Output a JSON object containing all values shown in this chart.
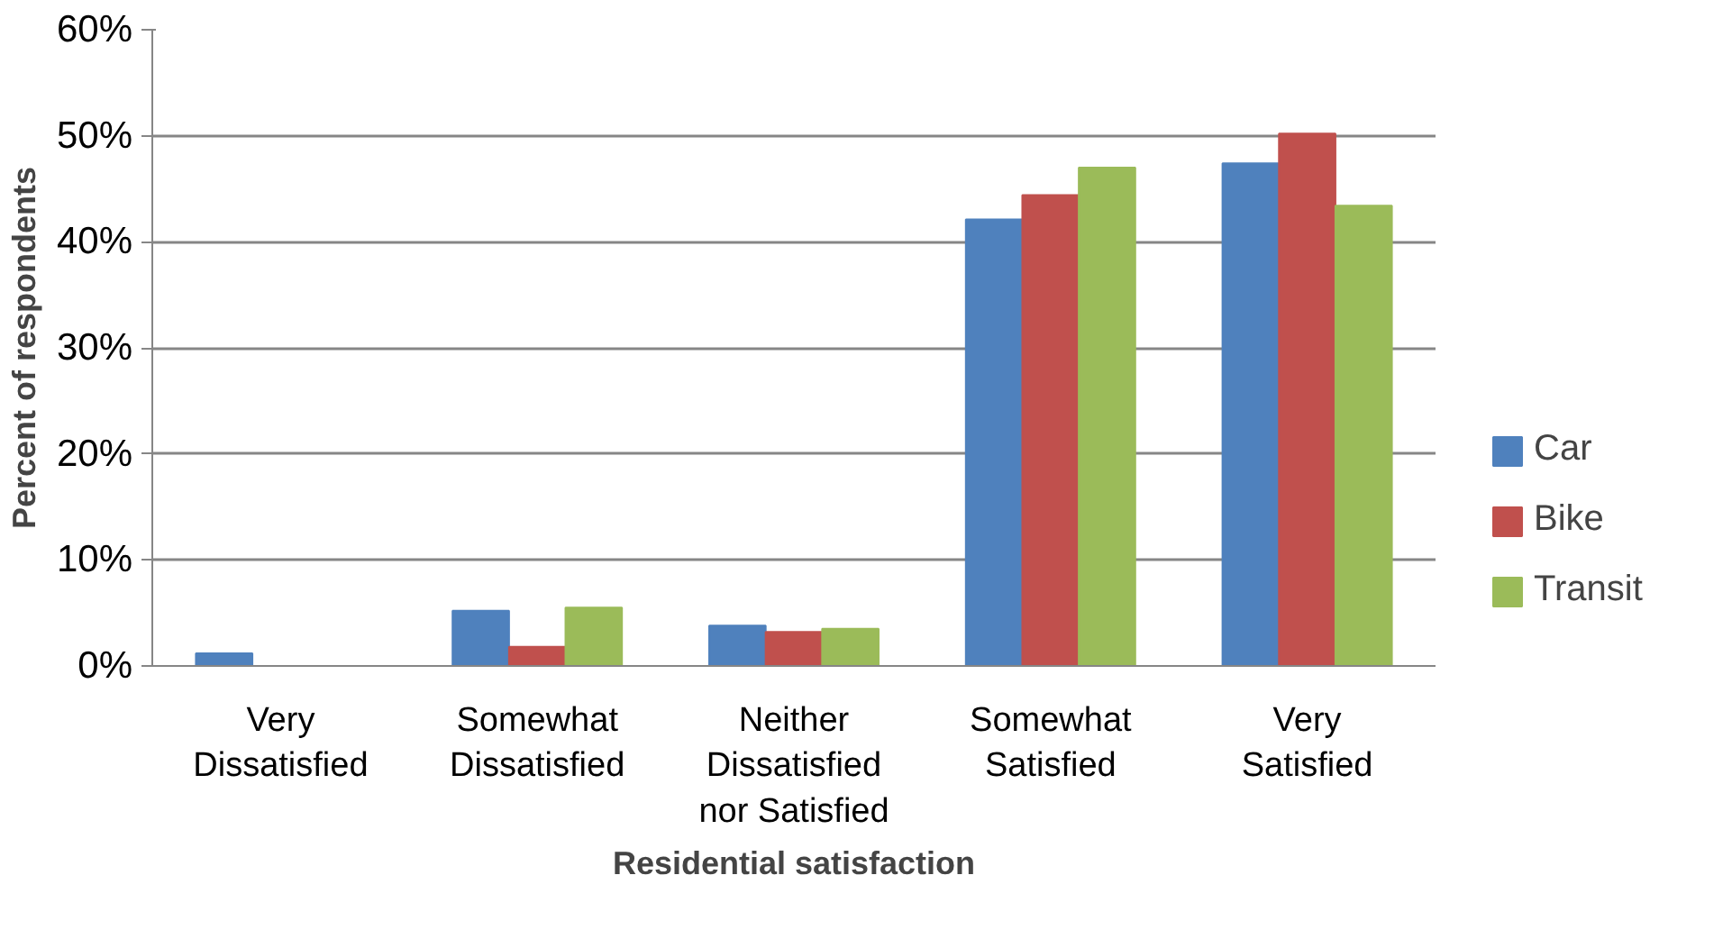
{
  "chart_data": {
    "type": "bar",
    "xlabel": "Residential satisfaction",
    "ylabel": "Percent of respondents",
    "categories": [
      "Very\nDissatisfied",
      "Somewhat\nDissatisfied",
      "Neither\nDissatisfied\nnor Satisfied",
      "Somewhat\nSatisfied",
      "Very\nSatisfied"
    ],
    "series": [
      {
        "name": "Car",
        "color": "#4f81bd",
        "values": [
          1.2,
          5.2,
          3.8,
          42.1,
          47.4
        ]
      },
      {
        "name": "Bike",
        "color": "#c0504d",
        "values": [
          0,
          1.8,
          3.2,
          44.4,
          50.2
        ]
      },
      {
        "name": "Transit",
        "color": "#9bbb59",
        "values": [
          0,
          5.5,
          3.5,
          47.0,
          43.4
        ]
      }
    ],
    "ylim": [
      0,
      60
    ],
    "yticks": [
      {
        "value": 0,
        "label": "0%"
      },
      {
        "value": 10,
        "label": "10%"
      },
      {
        "value": 20,
        "label": "20%"
      },
      {
        "value": 30,
        "label": "30%"
      },
      {
        "value": 40,
        "label": "40%"
      },
      {
        "value": 50,
        "label": "50%"
      },
      {
        "value": 60,
        "label": "60%"
      }
    ],
    "grid": "y",
    "legend": "right"
  }
}
